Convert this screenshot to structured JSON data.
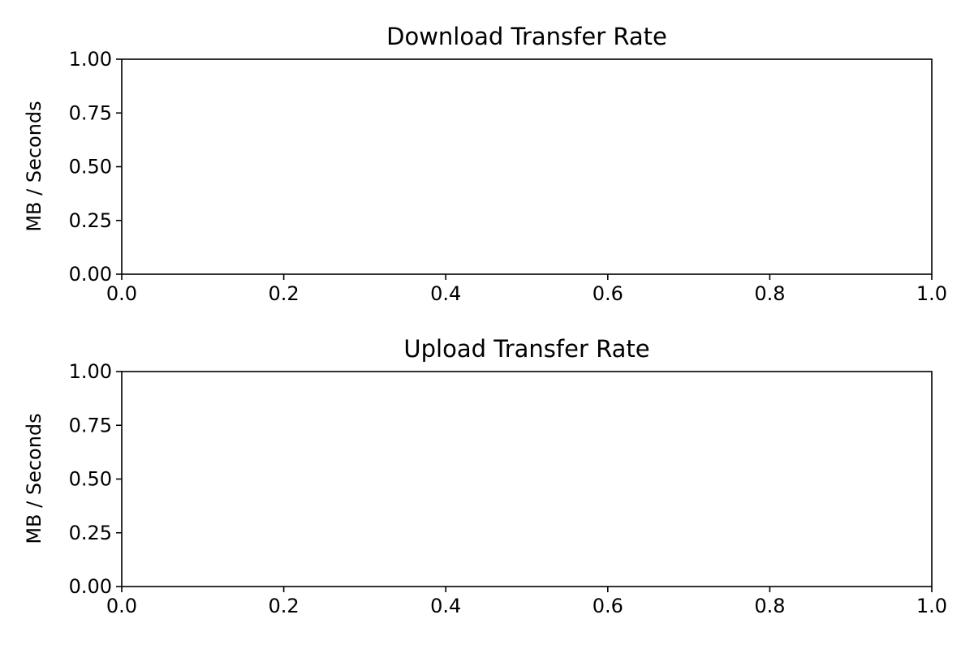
{
  "chart_data": [
    {
      "type": "line",
      "title": "Download Transfer Rate",
      "xlabel": "",
      "ylabel": "MB / Seconds",
      "xlim": [
        0.0,
        1.0
      ],
      "ylim": [
        0.0,
        1.0
      ],
      "xticks": [
        "0.0",
        "0.2",
        "0.4",
        "0.6",
        "0.8",
        "1.0"
      ],
      "yticks": [
        "0.00",
        "0.25",
        "0.50",
        "0.75",
        "1.00"
      ],
      "series": [],
      "grid": false
    },
    {
      "type": "line",
      "title": "Upload Transfer Rate",
      "xlabel": "",
      "ylabel": "MB / Seconds",
      "xlim": [
        0.0,
        1.0
      ],
      "ylim": [
        0.0,
        1.0
      ],
      "xticks": [
        "0.0",
        "0.2",
        "0.4",
        "0.6",
        "0.8",
        "1.0"
      ],
      "yticks": [
        "0.00",
        "0.25",
        "0.50",
        "0.75",
        "1.00"
      ],
      "series": [],
      "grid": false
    }
  ]
}
